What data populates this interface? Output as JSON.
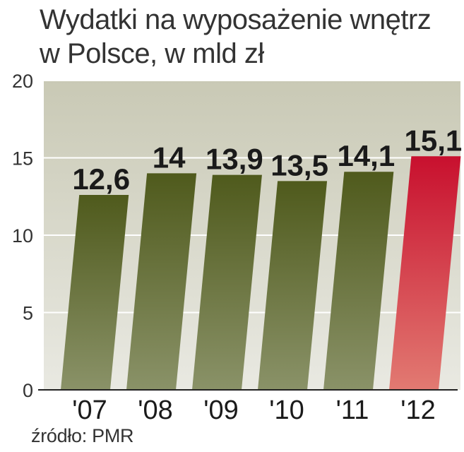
{
  "title_lines": [
    "Wydatki na wyposażenie wnętrz",
    "w Polsce, w mld zł"
  ],
  "source": "źródło: PMR",
  "colors": {
    "bar_top": "#4f5a1c",
    "bar_bottom": "#8a9268",
    "highlight_top": "#c8102e",
    "highlight_bottom": "#e27a72",
    "highlight_label": "#c8102e",
    "plot_top": "#c9c9b5",
    "plot_bottom": "#e9e9e2"
  },
  "chart_data": {
    "type": "bar",
    "title": "Wydatki na wyposażenie wnętrz w Polsce, w mld zł",
    "categories": [
      "'07",
      "'08",
      "'09",
      "'10",
      "'11",
      "'12"
    ],
    "values": [
      12.6,
      14,
      13.9,
      13.5,
      14.1,
      15.1
    ],
    "value_labels": [
      "12,6",
      "14",
      "13,9",
      "13,5",
      "14,1",
      "15,1"
    ],
    "highlight_index": 5,
    "y_ticks": [
      "0",
      "5",
      "10",
      "15",
      "20"
    ],
    "ylim": [
      0,
      20
    ],
    "grid": true
  }
}
